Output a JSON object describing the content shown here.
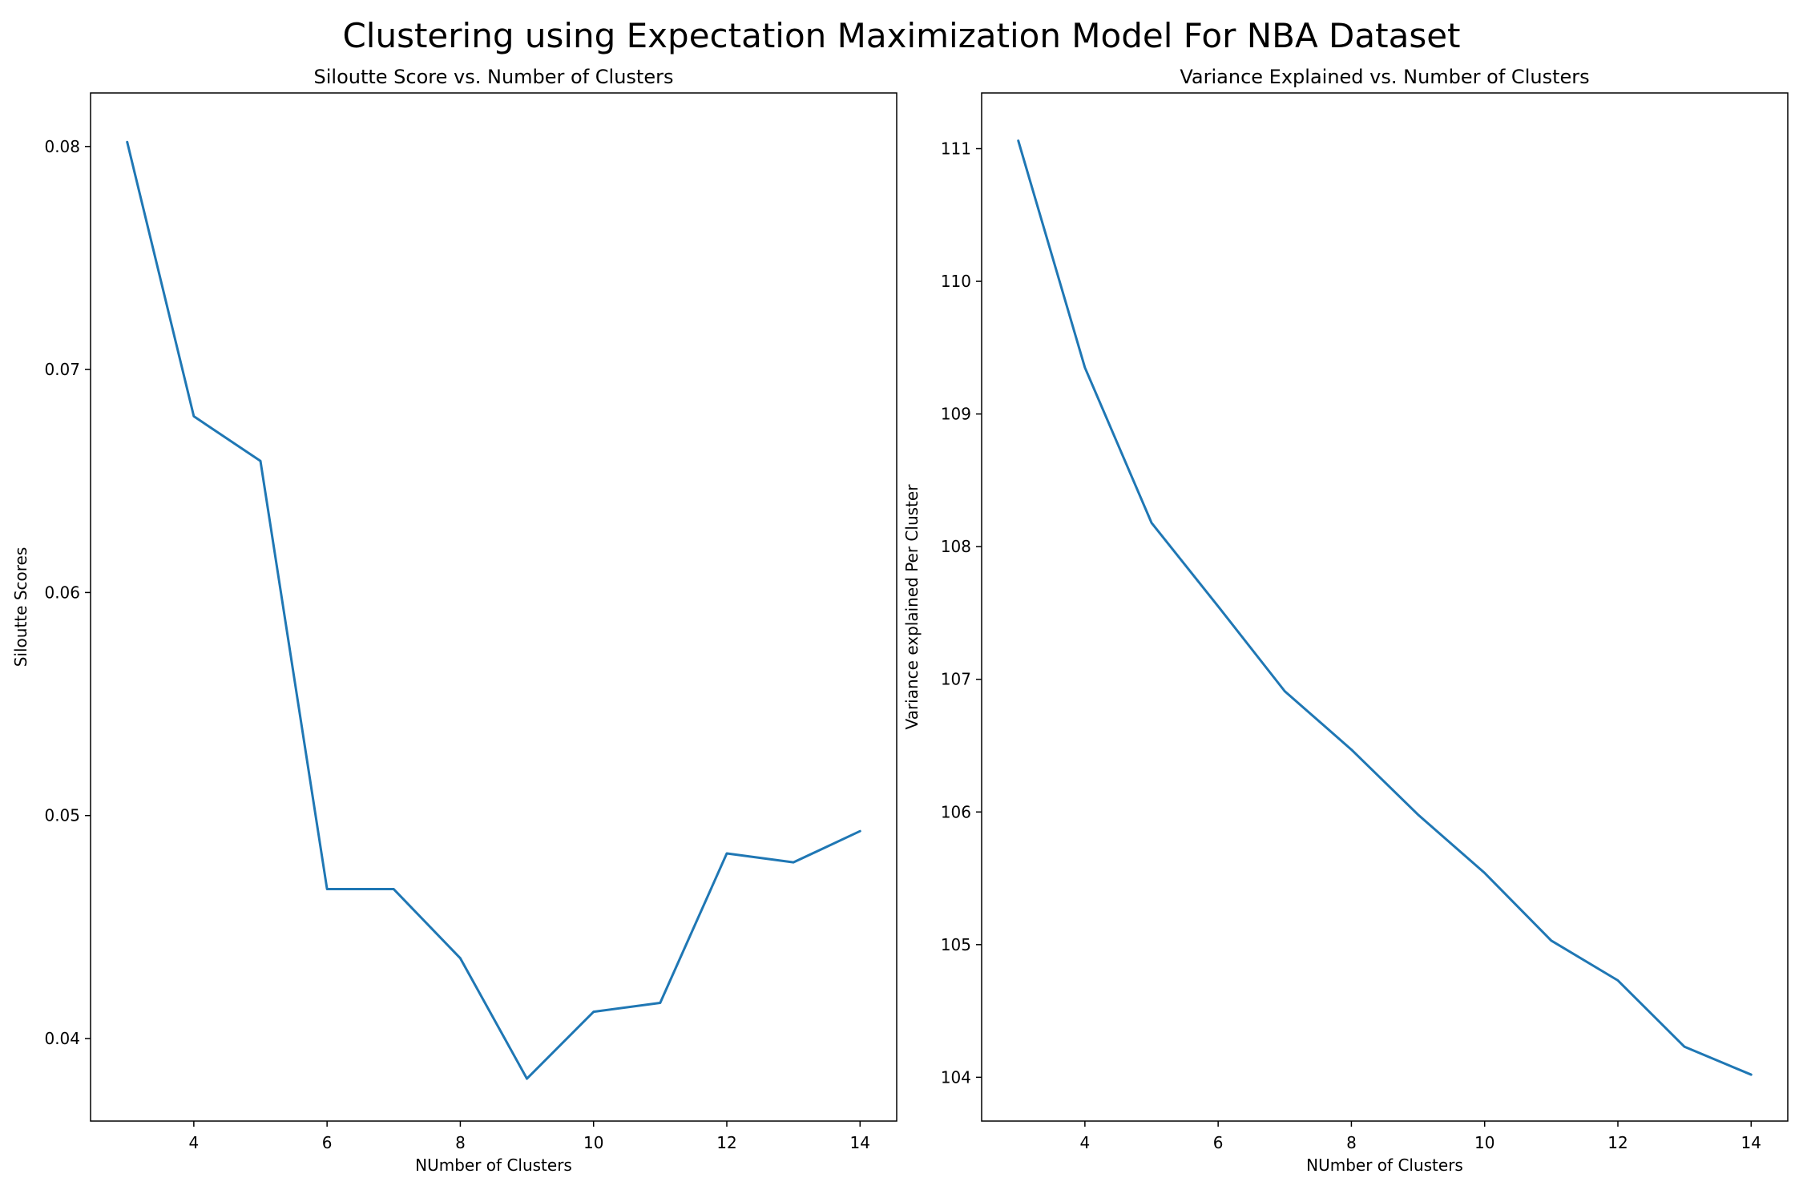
{
  "figure": {
    "title": "Clustering using Expectation Maximization Model For NBA Dataset"
  },
  "chart_data": [
    {
      "type": "line",
      "title": "Siloutte Score vs. Number of Clusters",
      "xlabel": "NUmber of Clusters",
      "ylabel": "Siloutte Scores",
      "x": [
        3,
        4,
        5,
        6,
        7,
        8,
        9,
        10,
        11,
        12,
        13,
        14
      ],
      "series": [
        {
          "values": [
            0.0802,
            0.0679,
            0.0659,
            0.0467,
            0.0467,
            0.0436,
            0.0382,
            0.0412,
            0.0416,
            0.0483,
            0.0479,
            0.0493
          ],
          "color": "#1f77b4"
        }
      ],
      "xlim": [
        2.45,
        14.55
      ],
      "ylim": [
        0.0363,
        0.0824
      ],
      "xticks": [
        4,
        6,
        8,
        10,
        12,
        14
      ],
      "yticks": [
        0.04,
        0.05,
        0.06,
        0.07,
        0.08
      ],
      "ytick_labels": [
        "0.04",
        "0.05",
        "0.06",
        "0.07",
        "0.08"
      ],
      "grid": false,
      "legend": "none"
    },
    {
      "type": "line",
      "title": "Variance Explained vs. Number of Clusters",
      "xlabel": "NUmber of Clusters",
      "ylabel": "Variance explained Per Cluster",
      "x": [
        3,
        4,
        5,
        6,
        7,
        8,
        9,
        10,
        11,
        12,
        13,
        14
      ],
      "series": [
        {
          "values": [
            111.06,
            109.35,
            108.18,
            107.55,
            106.91,
            106.47,
            105.98,
            105.54,
            105.03,
            104.73,
            104.23,
            104.02
          ],
          "color": "#1f77b4"
        }
      ],
      "xlim": [
        2.45,
        14.55
      ],
      "ylim": [
        103.67,
        111.42
      ],
      "xticks": [
        4,
        6,
        8,
        10,
        12,
        14
      ],
      "yticks": [
        104,
        105,
        106,
        107,
        108,
        109,
        110,
        111
      ],
      "ytick_labels": [
        "104",
        "105",
        "106",
        "107",
        "108",
        "109",
        "110",
        "111"
      ],
      "grid": false,
      "legend": "none"
    }
  ]
}
